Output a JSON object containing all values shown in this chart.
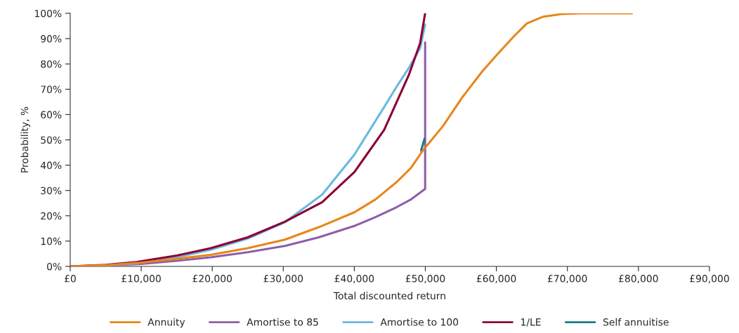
{
  "chart_data": {
    "type": "line",
    "xlabel": "Total discounted return",
    "ylabel": "Probability, %",
    "xlim": [
      0,
      90000
    ],
    "ylim": [
      0,
      100
    ],
    "xticks": [
      {
        "value": 0,
        "label": "£0"
      },
      {
        "value": 10000,
        "label": "£10,000"
      },
      {
        "value": 20000,
        "label": "£20,000"
      },
      {
        "value": 30000,
        "label": "£30,000"
      },
      {
        "value": 40000,
        "label": "£40,000"
      },
      {
        "value": 50000,
        "label": "£50,000"
      },
      {
        "value": 60000,
        "label": "£60,000"
      },
      {
        "value": 70000,
        "label": "£70,000"
      },
      {
        "value": 80000,
        "label": "£80,000"
      },
      {
        "value": 90000,
        "label": "£90,000"
      }
    ],
    "yticks": [
      {
        "value": 0,
        "label": "0%"
      },
      {
        "value": 10,
        "label": "10%"
      },
      {
        "value": 20,
        "label": "20%"
      },
      {
        "value": 30,
        "label": "30%"
      },
      {
        "value": 40,
        "label": "40%"
      },
      {
        "value": 50,
        "label": "50%"
      },
      {
        "value": 60,
        "label": "60%"
      },
      {
        "value": 70,
        "label": "70%"
      },
      {
        "value": 80,
        "label": "80%"
      },
      {
        "value": 90,
        "label": "90%"
      },
      {
        "value": 100,
        "label": "100%"
      }
    ],
    "grid": false,
    "legend": "bottom",
    "marker": "none",
    "line_style": "solid",
    "series": [
      {
        "name": "Annuity",
        "color": "#e8861a",
        "x": [
          0,
          5000,
          10000,
          15000,
          19780,
          25000,
          30250,
          35000,
          40020,
          43000,
          45950,
          48000,
          49620,
          52500,
          55200,
          58000,
          60200,
          62500,
          64300,
          66500,
          69200,
          72000,
          79100
        ],
        "values": [
          0,
          0.5,
          1.5,
          3,
          4.6,
          7.2,
          10.6,
          15.5,
          21.4,
          26.5,
          33.3,
          39,
          45.7,
          55.5,
          66.8,
          77,
          84,
          91,
          96,
          98.6,
          99.7,
          100,
          100
        ]
      },
      {
        "name": "Amortise to 85",
        "color": "#8e5ea8",
        "x": [
          0,
          5000,
          10000,
          15000,
          19780,
          25000,
          30250,
          35000,
          40020,
          43000,
          45950,
          48000,
          49970,
          49970
        ],
        "values": [
          0,
          0.3,
          1,
          2.2,
          3.6,
          5.6,
          8.1,
          11.5,
          16,
          19.5,
          23.4,
          26.5,
          30.6,
          88.5
        ]
      },
      {
        "name": "Amortise to 100",
        "color": "#6bb8e0",
        "x": [
          0,
          5000,
          9300,
          15000,
          19780,
          25000,
          30250,
          35480,
          40020,
          44210,
          45950,
          47700,
          49270,
          49970
        ],
        "values": [
          0,
          0.4,
          1.2,
          3.6,
          6.6,
          11,
          17.5,
          28.4,
          44.2,
          63,
          71,
          78.5,
          86.2,
          95.6
        ]
      },
      {
        "name": "1/LE",
        "color": "#8b0035",
        "x": [
          0,
          5000,
          9300,
          15000,
          19780,
          25000,
          30250,
          35480,
          40020,
          44210,
          47700,
          49270,
          49970
        ],
        "values": [
          0,
          0.6,
          1.7,
          4.3,
          7.2,
          11.5,
          17.7,
          25.4,
          37.3,
          54,
          75.8,
          88.2,
          100
        ]
      },
      {
        "name": "Self annuitise",
        "color": "#147d86",
        "x": [
          49400,
          49900
        ],
        "values": [
          45.8,
          50.5
        ]
      }
    ]
  }
}
